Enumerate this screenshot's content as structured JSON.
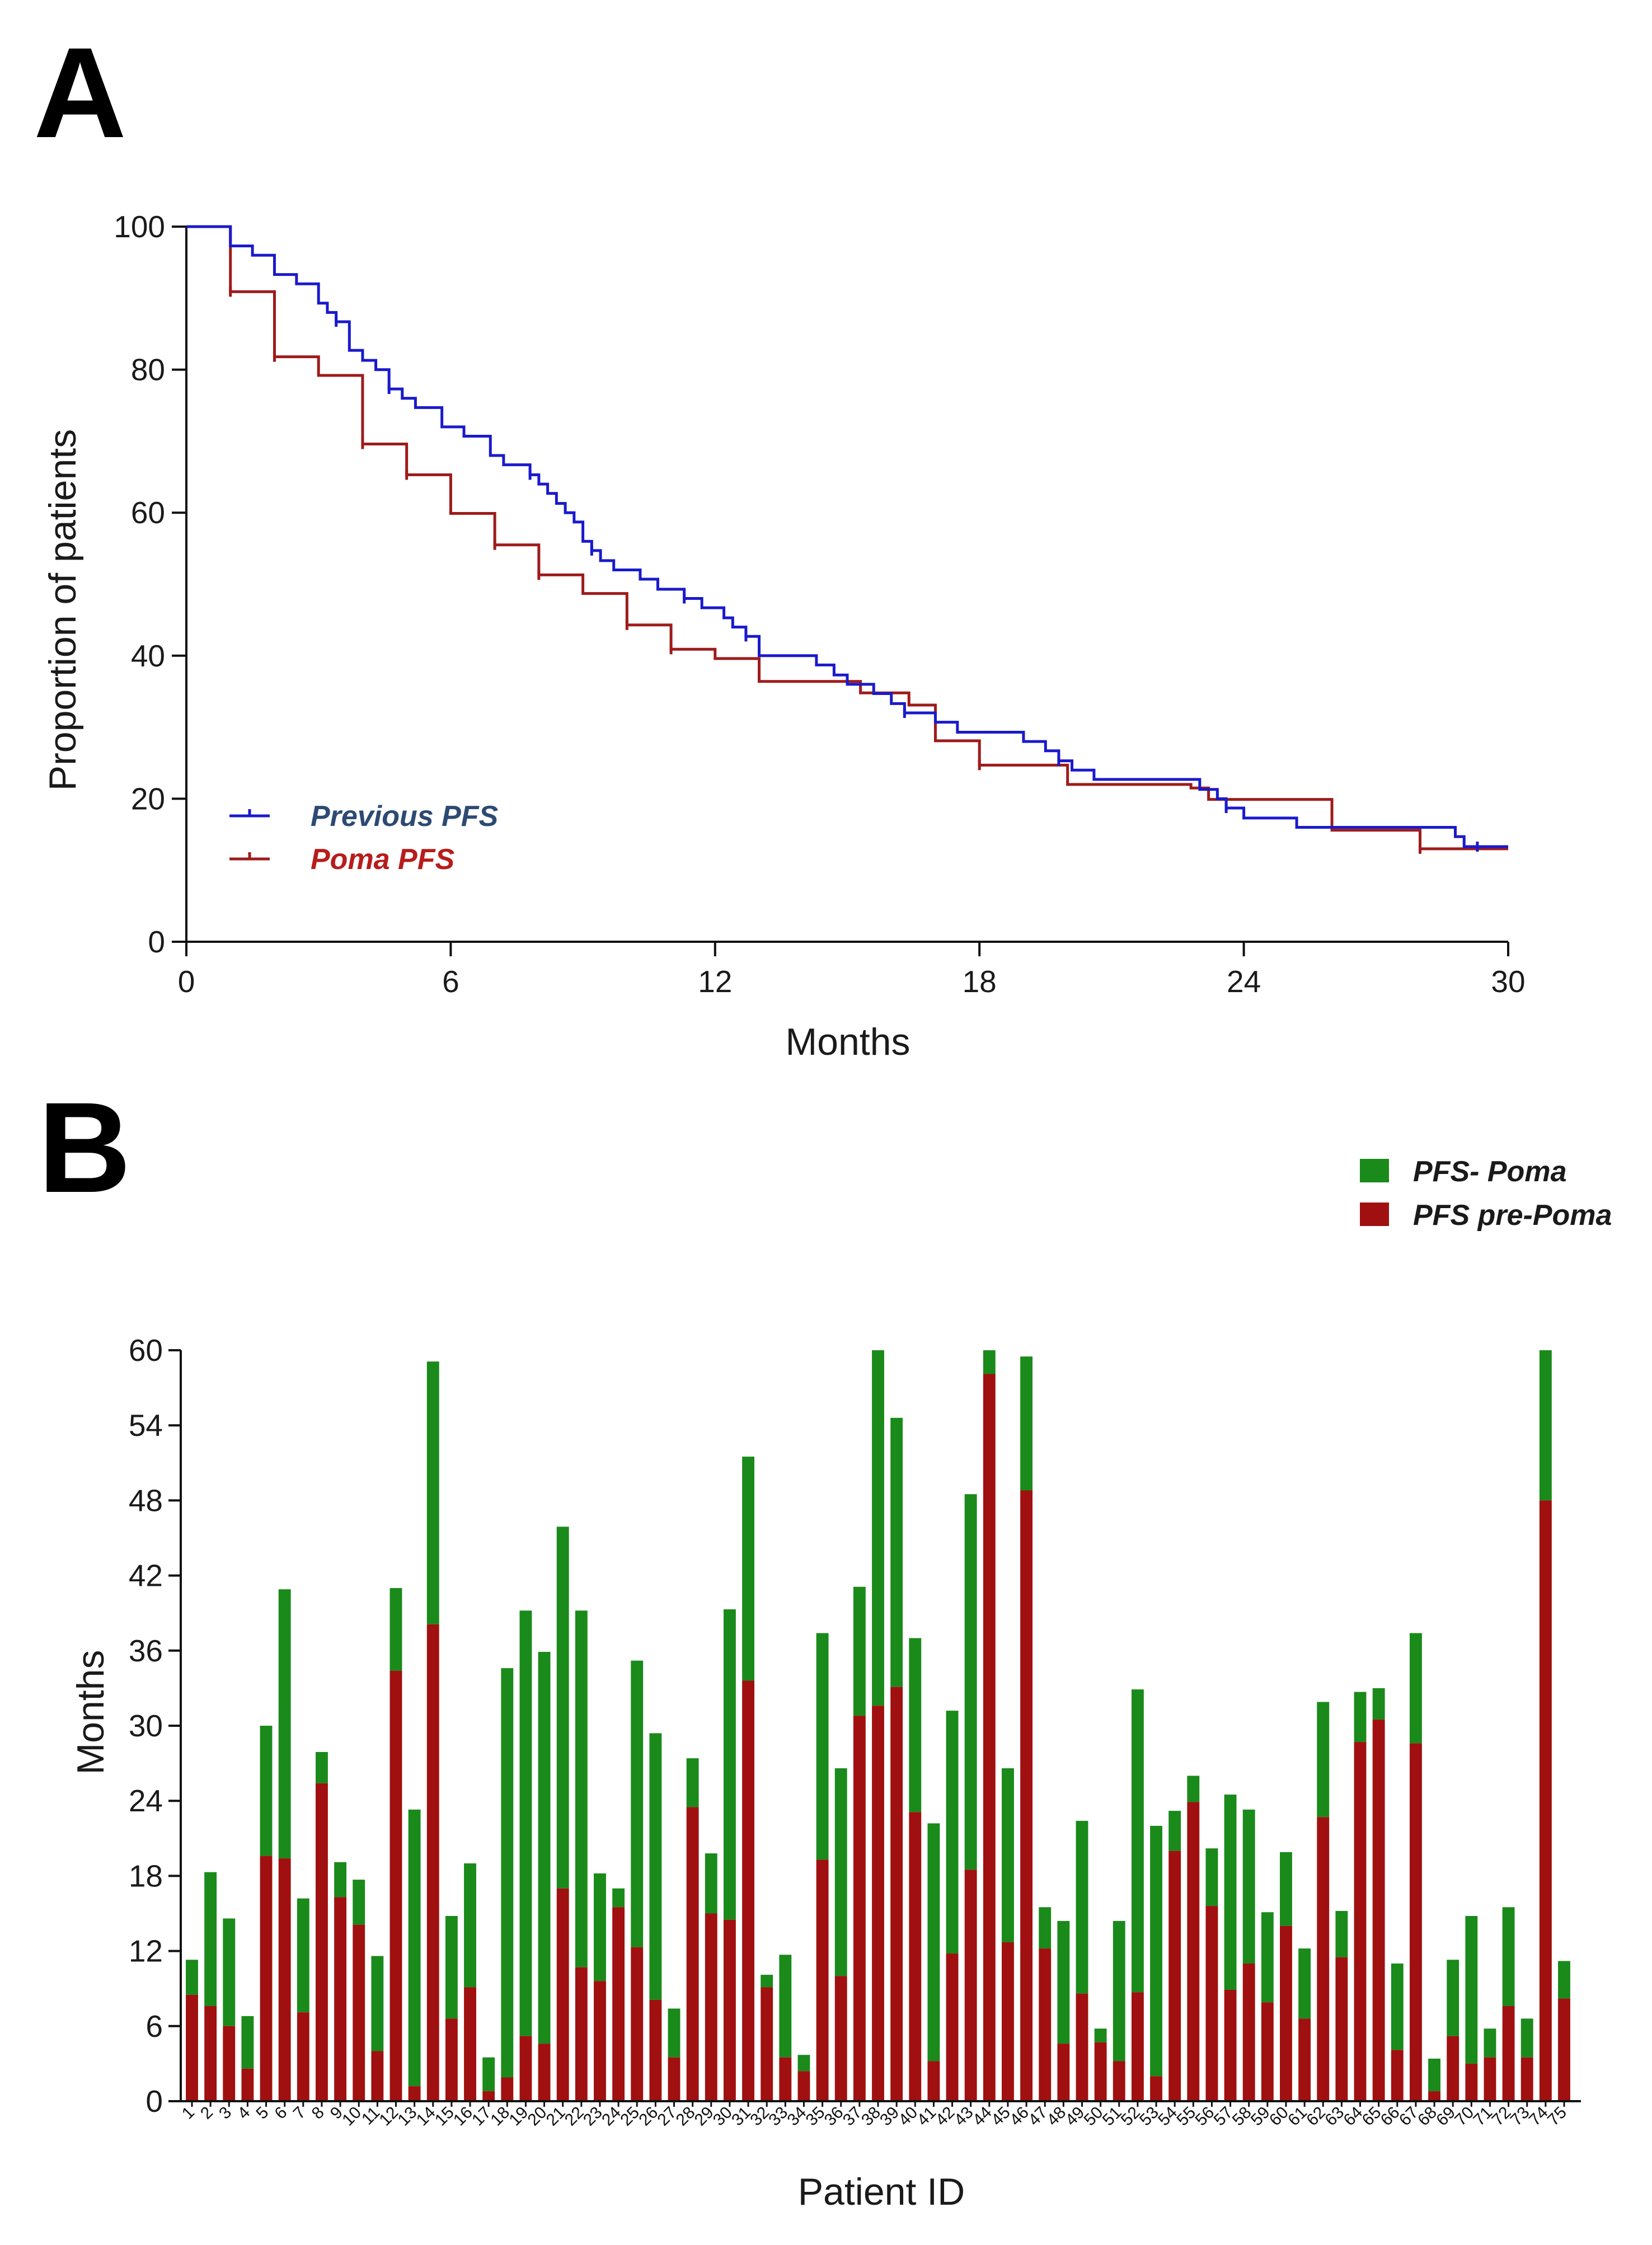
{
  "chart_data": [
    {
      "panel": "A",
      "type": "line",
      "subtype": "kaplan-meier",
      "title": "",
      "xlabel": "Months",
      "ylabel": "Proportion of patients",
      "xlim": [
        0,
        30
      ],
      "ylim": [
        0,
        100
      ],
      "xticks": [
        "0",
        "6",
        "12",
        "18",
        "24",
        "30"
      ],
      "yticks": [
        "0",
        "20",
        "40",
        "60",
        "80",
        "100"
      ],
      "legend_position": "bottom-left",
      "series": [
        {
          "name": "Previous PFS",
          "color": "#1a1acc",
          "legend_color": "#2c4a72",
          "steps": [
            [
              0,
              100
            ],
            [
              1,
              97.3
            ],
            [
              1.5,
              96
            ],
            [
              2,
              93.3
            ],
            [
              2.5,
              92
            ],
            [
              3,
              89.3
            ],
            [
              3.2,
              88
            ],
            [
              3.4,
              86.7
            ],
            [
              3.7,
              82.7
            ],
            [
              4,
              81.3
            ],
            [
              4.3,
              80
            ],
            [
              4.6,
              77.3
            ],
            [
              4.9,
              76
            ],
            [
              5.2,
              74.7
            ],
            [
              5.8,
              72
            ],
            [
              6.3,
              70.7
            ],
            [
              6.9,
              68
            ],
            [
              7.2,
              66.7
            ],
            [
              7.8,
              65.3
            ],
            [
              8,
              64
            ],
            [
              8.2,
              62.7
            ],
            [
              8.4,
              61.3
            ],
            [
              8.6,
              60
            ],
            [
              8.8,
              58.7
            ],
            [
              9,
              56
            ],
            [
              9.2,
              54.7
            ],
            [
              9.4,
              53.3
            ],
            [
              9.7,
              52
            ],
            [
              10.3,
              50.7
            ],
            [
              10.7,
              49.3
            ],
            [
              11.3,
              48
            ],
            [
              11.7,
              46.7
            ],
            [
              12.2,
              45.3
            ],
            [
              12.4,
              44
            ],
            [
              12.7,
              42.7
            ],
            [
              13.0,
              40
            ],
            [
              14.3,
              38.7
            ],
            [
              14.7,
              37.3
            ],
            [
              15.0,
              36
            ],
            [
              15.6,
              34.7
            ],
            [
              16.0,
              33.3
            ],
            [
              16.3,
              32
            ],
            [
              17.0,
              30.7
            ],
            [
              17.5,
              29.3
            ],
            [
              19.0,
              28
            ],
            [
              19.5,
              26.7
            ],
            [
              19.8,
              25.3
            ],
            [
              20.1,
              24
            ],
            [
              20.6,
              22.7
            ],
            [
              23.0,
              21.3
            ],
            [
              23.4,
              20
            ],
            [
              23.6,
              18.7
            ],
            [
              24.0,
              17.3
            ],
            [
              25.2,
              16
            ],
            [
              28.8,
              14.7
            ],
            [
              29.0,
              13.3
            ],
            [
              30,
              13.3
            ]
          ],
          "censor_x": [
            3.4,
            4.6,
            7.8,
            9.2,
            11.3,
            12.7,
            16.3,
            19.8,
            23.6,
            29.3
          ]
        },
        {
          "name": "Poma PFS",
          "color": "#9e1b1b",
          "legend_color": "#b81c1c",
          "steps": [
            [
              0,
              100
            ],
            [
              1,
              90.9
            ],
            [
              2,
              81.8
            ],
            [
              3,
              79.2
            ],
            [
              4,
              69.6
            ],
            [
              5,
              65.3
            ],
            [
              6,
              59.9
            ],
            [
              7,
              55.5
            ],
            [
              8,
              51.3
            ],
            [
              9,
              48.7
            ],
            [
              10,
              44.3
            ],
            [
              11,
              40.9
            ],
            [
              12,
              39.6
            ],
            [
              13,
              36.4
            ],
            [
              15.3,
              34.8
            ],
            [
              16.4,
              33.1
            ],
            [
              17,
              28.1
            ],
            [
              18,
              24.7
            ],
            [
              20,
              22
            ],
            [
              22.8,
              21.5
            ],
            [
              23.2,
              19.9
            ],
            [
              26.0,
              15.6
            ],
            [
              28.0,
              13
            ],
            [
              30,
              13
            ]
          ],
          "censor_x": [
            1,
            2,
            4,
            5,
            7,
            8,
            10,
            11,
            18,
            28
          ]
        }
      ]
    },
    {
      "panel": "B",
      "type": "bar",
      "stacked": true,
      "title": "",
      "xlabel": "Patient ID",
      "ylabel": "Months",
      "ylim": [
        0,
        60
      ],
      "yticks": [
        "0",
        "6",
        "12",
        "18",
        "24",
        "30",
        "36",
        "42",
        "48",
        "54",
        "60"
      ],
      "legend_position": "top-right",
      "categories": [
        "1",
        "2",
        "3",
        "4",
        "5",
        "6",
        "7",
        "8",
        "9",
        "10",
        "11",
        "12",
        "13",
        "14",
        "15",
        "16",
        "17",
        "18",
        "19",
        "20",
        "21",
        "22",
        "23",
        "24",
        "25",
        "26",
        "27",
        "28",
        "29",
        "30",
        "31",
        "32",
        "33",
        "34",
        "35",
        "36",
        "37",
        "38",
        "39",
        "40",
        "41",
        "42",
        "43",
        "44",
        "45",
        "46",
        "47",
        "48",
        "49",
        "50",
        "51",
        "52",
        "53",
        "54",
        "55",
        "56",
        "57",
        "58",
        "59",
        "60",
        "61",
        "62",
        "63",
        "64",
        "65",
        "66",
        "67",
        "68",
        "69",
        "70",
        "71",
        "72",
        "73",
        "74",
        "75"
      ],
      "series": [
        {
          "name": "PFS pre-Poma",
          "color": "#a01010",
          "values": [
            8.5,
            7.6,
            6,
            2.6,
            19.6,
            19.4,
            7.1,
            25.4,
            16.3,
            14.1,
            4,
            34.4,
            1.2,
            38.1,
            6.6,
            9.1,
            0.8,
            1.9,
            5.2,
            4.6,
            17,
            10.7,
            9.6,
            15.5,
            12.3,
            8.1,
            3.5,
            23.5,
            15,
            14.5,
            33.6,
            9.1,
            3.5,
            2.4,
            19.3,
            10,
            30.8,
            31.6,
            33.1,
            23.1,
            3.2,
            11.8,
            18.5,
            58.1,
            12.7,
            48.8,
            12.2,
            4.6,
            8.6,
            4.7,
            3.2,
            8.7,
            2,
            20,
            23.9,
            15.6,
            8.9,
            11,
            7.9,
            14,
            6.6,
            22.7,
            11.5,
            28.7,
            30.5,
            4.1,
            28.6,
            0.8,
            5.2,
            3,
            3.5,
            7.6,
            3.5,
            48,
            8.2
          ]
        },
        {
          "name": "PFS- Poma",
          "color": "#1a8a1a",
          "values": [
            2.8,
            10.7,
            8.6,
            4.2,
            10.4,
            21.5,
            9.1,
            2.5,
            2.8,
            3.6,
            7.6,
            6.6,
            22.1,
            21,
            8.2,
            9.9,
            2.7,
            32.7,
            34,
            31.3,
            28.9,
            28.5,
            8.6,
            1.5,
            22.9,
            21.3,
            3.9,
            3.9,
            4.8,
            24.8,
            17.9,
            1,
            8.2,
            1.3,
            18.1,
            16.6,
            10.3,
            28.4,
            21.5,
            13.9,
            19,
            19.4,
            30,
            1.9,
            13.9,
            10.7,
            3.3,
            9.8,
            13.8,
            1.1,
            11.2,
            24.2,
            20,
            3.2,
            2.1,
            4.6,
            15.6,
            12.3,
            7.2,
            5.9,
            5.6,
            9.2,
            3.7,
            4,
            2.5,
            6.9,
            8.8,
            2.6,
            6.1,
            11.8,
            2.3,
            7.9,
            3.1,
            12,
            3
          ]
        }
      ]
    }
  ],
  "labels": {
    "panel_a": "A",
    "panel_b": "B"
  }
}
